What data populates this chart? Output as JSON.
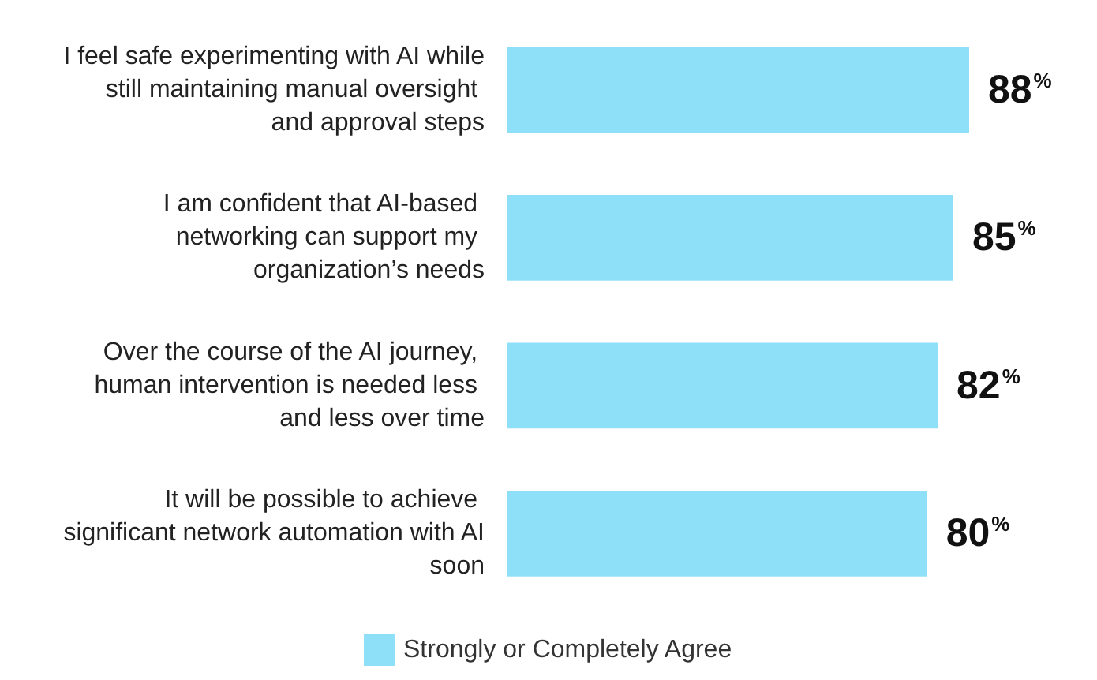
{
  "chart_data": {
    "type": "bar",
    "orientation": "horizontal",
    "categories": [
      "I feel safe experimenting with AI while still maintaining manual oversight and approval steps",
      "I am confident that AI-based networking can support my organization’s needs",
      "Over the course of the AI journey, human intervention is needed less and less over time",
      "It will be possible to achieve significant network automation with AI soon"
    ],
    "series": [
      {
        "name": "Strongly or Completely Agree",
        "color": "#8ee0f8",
        "values": [
          88,
          85,
          82,
          80
        ]
      }
    ],
    "value_labels": [
      "88%",
      "85%",
      "82%",
      "80%"
    ],
    "data_labels": true,
    "legend": "bottom"
  }
}
